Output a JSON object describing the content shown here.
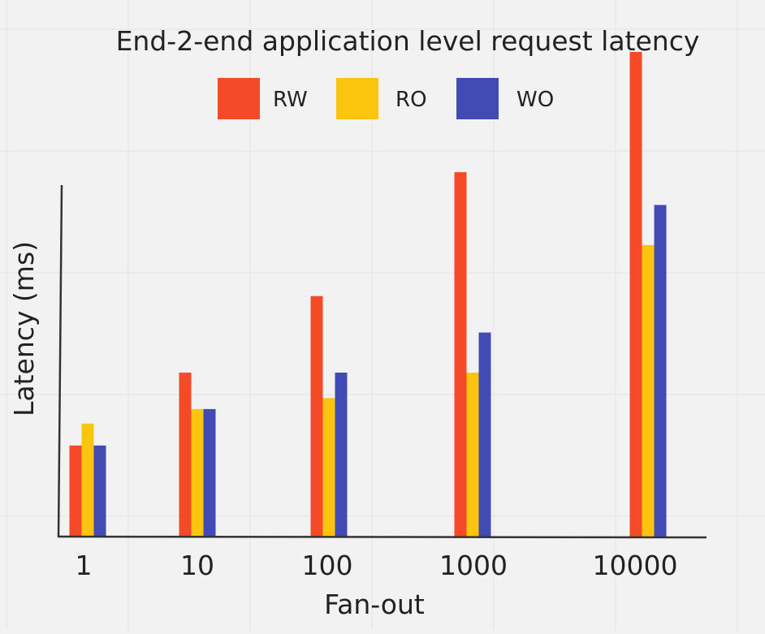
{
  "chart_data": {
    "type": "bar",
    "title": "End-2-end application level request latency",
    "xlabel": "Fan-out",
    "ylabel": "Latency (ms)",
    "categories": [
      "1",
      "10",
      "100",
      "1000",
      "10000"
    ],
    "series": [
      {
        "name": "RW",
        "color": "#f44a28",
        "values": [
          25,
          45,
          66,
          100,
          133
        ]
      },
      {
        "name": "RO",
        "color": "#fbc40f",
        "values": [
          31,
          35,
          38,
          45,
          80
        ]
      },
      {
        "name": "WO",
        "color": "#424ab4",
        "values": [
          25,
          35,
          45,
          56,
          91
        ]
      }
    ],
    "ylim": [
      0,
      133
    ],
    "y_ticks_shown": false,
    "legend_position": "top",
    "grid": true,
    "background_color": "#f2f2f2",
    "grid_color": "#e4e4e4",
    "axis_color": "#333333"
  }
}
